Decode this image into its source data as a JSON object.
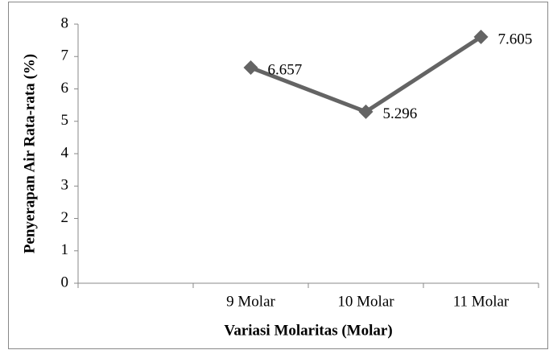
{
  "chart_data": {
    "type": "line",
    "x_label": "Variasi Molaritas (Molar)",
    "y_label": "Penyerapan Air Rata-rata (%)",
    "categories": [
      null,
      "9 Molar",
      "10 Molar",
      "11 Molar"
    ],
    "series": [
      {
        "color": "#646464",
        "values": [
          null,
          6.657,
          5.296,
          7.605
        ]
      }
    ],
    "ylim": [
      0,
      8
    ],
    "yticks": [
      0,
      1,
      2,
      3,
      4,
      5,
      6,
      7,
      8
    ]
  }
}
